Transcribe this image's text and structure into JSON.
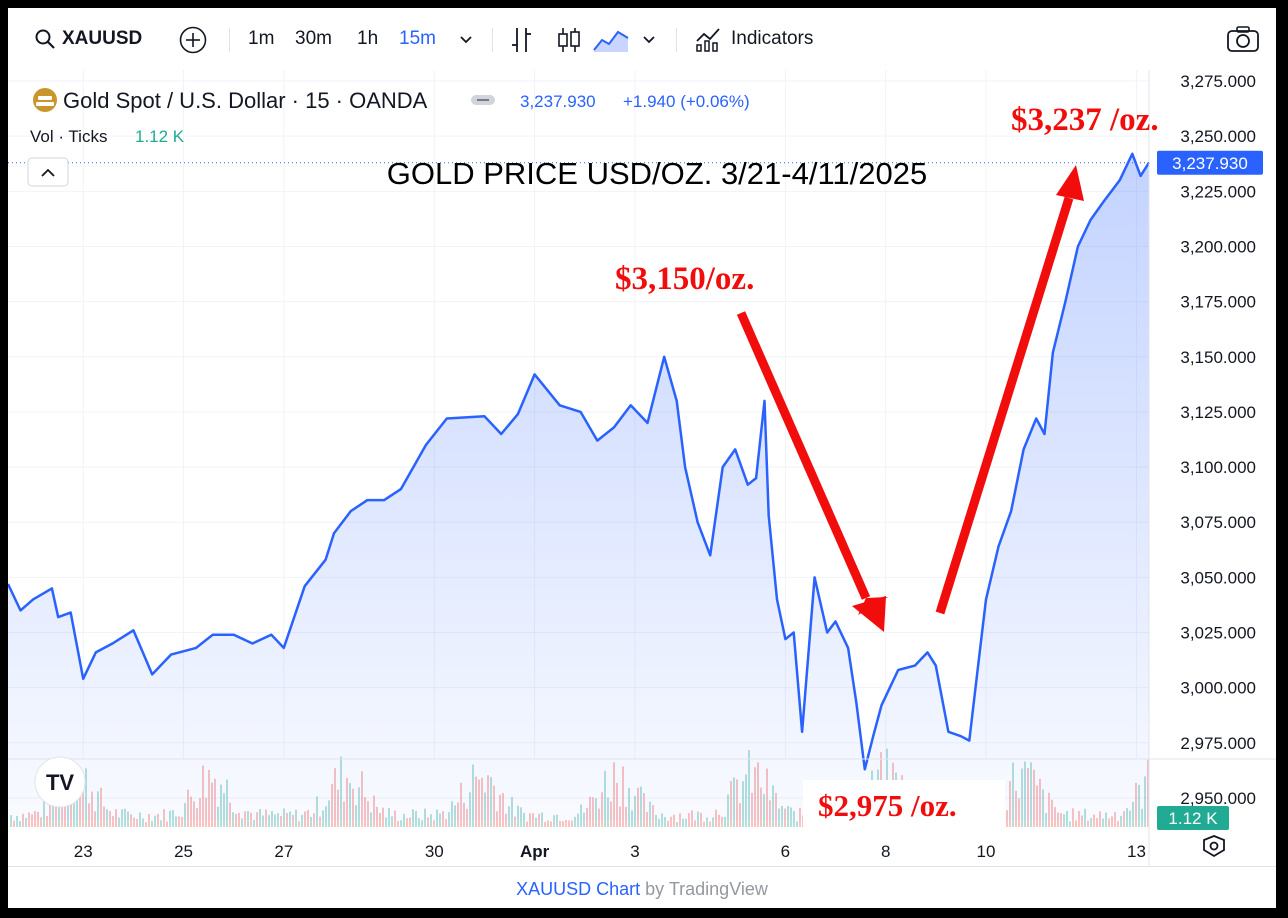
{
  "toolbar": {
    "symbol": "XAUUSD",
    "intervals": [
      "1m",
      "30m",
      "1h",
      "15m"
    ],
    "selected_interval": "15m",
    "indicators_label": "Indicators"
  },
  "legend": {
    "instrument": "Gold Spot / U.S. Dollar · 15 · OANDA",
    "price": "3,237.930",
    "change": "+1.940 (+0.06%)",
    "volume_label": "Vol · Ticks",
    "volume_value": "1.12 K"
  },
  "price_badge": "3,237.930",
  "volume_badge": "1.12 K",
  "footer": {
    "symbol_chart": "XAUUSD Chart",
    "by": "by TradingView"
  },
  "annotations": {
    "start_label": "$3,150/oz.",
    "low_label": "$2,975 /oz.",
    "high_label": "$3,237 /oz."
  },
  "colors": {
    "line": "#2962ff",
    "annotation": "#f20d0d",
    "volume_up": "#26a69a",
    "volume_down": "#ef5350"
  },
  "chart_data": {
    "type": "area",
    "title": "GOLD PRICE USD/OZ. 3/21-4/11/2025",
    "x_ticks": [
      "23",
      "25",
      "27",
      "30",
      "Apr",
      "3",
      "6",
      "8",
      "10",
      "13"
    ],
    "y_ticks": [
      "2,950.000",
      "2,975.000",
      "3,000.000",
      "3,025.000",
      "3,050.000",
      "3,075.000",
      "3,100.000",
      "3,125.000",
      "3,150.000",
      "3,175.000",
      "3,200.000",
      "3,225.000",
      "3,250.000",
      "3,275.000"
    ],
    "ylim": [
      2940,
      3280
    ],
    "x_range": [
      "2025-03-21T12:00",
      "2025-04-13T06:00"
    ],
    "grid": true,
    "series": [
      {
        "values": [
          [
            "2025-03-21T12:00",
            3047
          ],
          [
            "2025-03-21T18:00",
            3035
          ],
          [
            "2025-03-22T00:00",
            3040
          ],
          [
            "2025-03-22T09:00",
            3045
          ],
          [
            "2025-03-22T12:00",
            3032
          ],
          [
            "2025-03-22T18:00",
            3034
          ],
          [
            "2025-03-23T00:00",
            3004
          ],
          [
            "2025-03-23T06:00",
            3016
          ],
          [
            "2025-03-23T14:00",
            3020
          ],
          [
            "2025-03-24T00:00",
            3026
          ],
          [
            "2025-03-24T09:00",
            3006
          ],
          [
            "2025-03-24T18:00",
            3015
          ],
          [
            "2025-03-25T06:00",
            3018
          ],
          [
            "2025-03-25T14:00",
            3024
          ],
          [
            "2025-03-26T00:00",
            3024
          ],
          [
            "2025-03-26T09:00",
            3020
          ],
          [
            "2025-03-26T18:00",
            3024
          ],
          [
            "2025-03-27T00:00",
            3018
          ],
          [
            "2025-03-27T10:00",
            3046
          ],
          [
            "2025-03-27T20:00",
            3058
          ],
          [
            "2025-03-28T00:00",
            3070
          ],
          [
            "2025-03-28T08:00",
            3080
          ],
          [
            "2025-03-28T16:00",
            3085
          ],
          [
            "2025-03-29T00:00",
            3085
          ],
          [
            "2025-03-29T08:00",
            3090
          ],
          [
            "2025-03-29T20:00",
            3110
          ],
          [
            "2025-03-30T06:00",
            3122
          ],
          [
            "2025-03-31T00:00",
            3123
          ],
          [
            "2025-03-31T08:00",
            3115
          ],
          [
            "2025-03-31T16:00",
            3124
          ],
          [
            "2025-04-01T00:00",
            3142
          ],
          [
            "2025-04-01T12:00",
            3128
          ],
          [
            "2025-04-01T22:00",
            3125
          ],
          [
            "2025-04-02T06:00",
            3112
          ],
          [
            "2025-04-02T14:00",
            3118
          ],
          [
            "2025-04-02T22:00",
            3128
          ],
          [
            "2025-04-03T06:00",
            3120
          ],
          [
            "2025-04-03T14:00",
            3150
          ],
          [
            "2025-04-03T20:00",
            3130
          ],
          [
            "2025-04-04T00:00",
            3100
          ],
          [
            "2025-04-04T06:00",
            3075
          ],
          [
            "2025-04-04T12:00",
            3060
          ],
          [
            "2025-04-04T18:00",
            3100
          ],
          [
            "2025-04-05T00:00",
            3108
          ],
          [
            "2025-04-05T06:00",
            3092
          ],
          [
            "2025-04-05T10:00",
            3095
          ],
          [
            "2025-04-05T14:00",
            3130
          ],
          [
            "2025-04-05T16:00",
            3078
          ],
          [
            "2025-04-05T20:00",
            3040
          ],
          [
            "2025-04-06T00:00",
            3022
          ],
          [
            "2025-04-06T04:00",
            3025
          ],
          [
            "2025-04-06T08:00",
            2980
          ],
          [
            "2025-04-06T14:00",
            3050
          ],
          [
            "2025-04-06T20:00",
            3025
          ],
          [
            "2025-04-07T00:00",
            3030
          ],
          [
            "2025-04-07T06:00",
            3018
          ],
          [
            "2025-04-07T10:00",
            2993
          ],
          [
            "2025-04-07T14:00",
            2963
          ],
          [
            "2025-04-07T18:00",
            2978
          ],
          [
            "2025-04-07T22:00",
            2992
          ],
          [
            "2025-04-08T06:00",
            3008
          ],
          [
            "2025-04-08T14:00",
            3010
          ],
          [
            "2025-04-08T20:00",
            3016
          ],
          [
            "2025-04-09T00:00",
            3010
          ],
          [
            "2025-04-09T06:00",
            2980
          ],
          [
            "2025-04-09T12:00",
            2978
          ],
          [
            "2025-04-09T16:00",
            2976
          ],
          [
            "2025-04-09T20:00",
            3008
          ],
          [
            "2025-04-10T00:00",
            3040
          ],
          [
            "2025-04-10T06:00",
            3064
          ],
          [
            "2025-04-10T12:00",
            3080
          ],
          [
            "2025-04-10T18:00",
            3108
          ],
          [
            "2025-04-11T00:00",
            3122
          ],
          [
            "2025-04-11T04:00",
            3115
          ],
          [
            "2025-04-11T08:00",
            3152
          ],
          [
            "2025-04-11T14:00",
            3175
          ],
          [
            "2025-04-11T20:00",
            3200
          ],
          [
            "2025-04-12T02:00",
            3212
          ],
          [
            "2025-04-12T08:00",
            3220
          ],
          [
            "2025-04-12T16:00",
            3230
          ],
          [
            "2025-04-12T22:00",
            3242
          ],
          [
            "2025-04-13T02:00",
            3232
          ],
          [
            "2025-04-13T06:00",
            3238
          ]
        ]
      }
    ]
  }
}
